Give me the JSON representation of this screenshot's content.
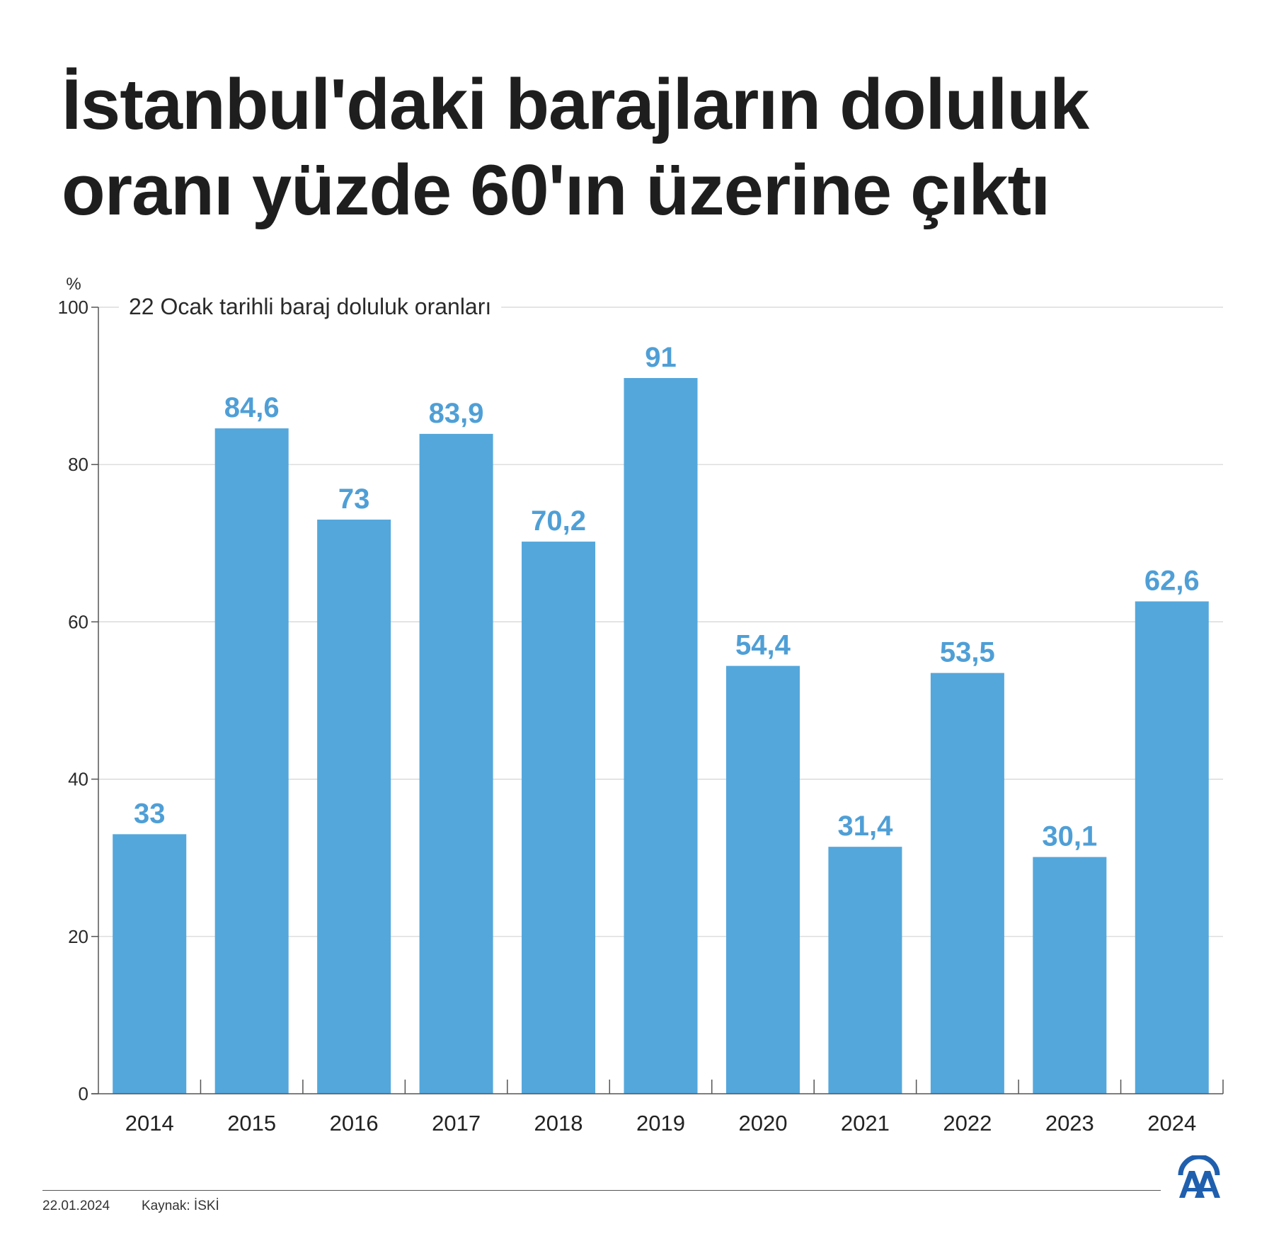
{
  "header": {
    "title_line1": "İstanbul'daki barajların doluluk",
    "title_line2": "oranı yüzde 60'ın üzerine çıktı"
  },
  "chart_data": {
    "type": "bar",
    "title": "İstanbul'daki barajların doluluk oranı yüzde 60'ın üzerine çıktı",
    "subtitle": "22 Ocak tarihli baraj doluluk oranları",
    "ylabel": "%",
    "xlabel": "",
    "categories": [
      "2014",
      "2015",
      "2016",
      "2017",
      "2018",
      "2019",
      "2020",
      "2021",
      "2022",
      "2023",
      "2024"
    ],
    "values": [
      33,
      84.6,
      73,
      83.9,
      70.2,
      91,
      54.4,
      31.4,
      53.5,
      30.1,
      62.6
    ],
    "value_labels": [
      "33",
      "84,6",
      "73",
      "83,9",
      "70,2",
      "91",
      "54,4",
      "31,4",
      "53,5",
      "30,1",
      "62,6"
    ],
    "ylim": [
      0,
      100
    ],
    "yticks": [
      "0",
      "20",
      "40",
      "60",
      "80",
      "100"
    ],
    "grid": true,
    "bar_color": "#54a7db",
    "label_color": "#4f9fd6"
  },
  "footer": {
    "date": "22.01.2024",
    "source": "Kaynak: İSKİ",
    "logo": "aa-logo-icon"
  }
}
